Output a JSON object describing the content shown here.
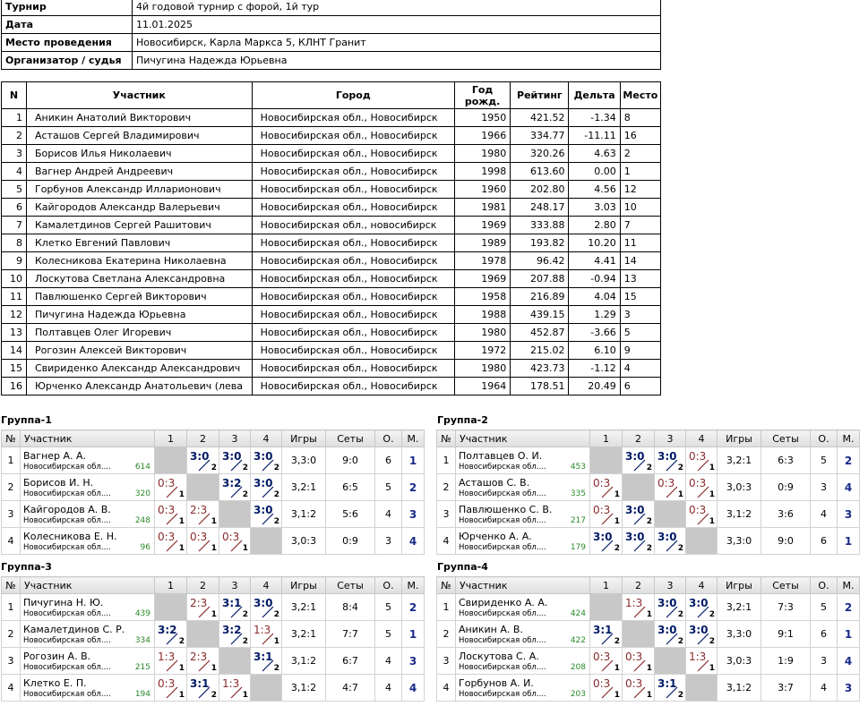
{
  "info": [
    {
      "key": "Турнир",
      "value": "4й годовой турнир с форой, 1й тур"
    },
    {
      "key": "Дата",
      "value": "11.01.2025"
    },
    {
      "key": "Место проведения",
      "value": "Новосибирск, Карла Маркса 5, КЛНТ Гранит"
    },
    {
      "key": "Организатор / судья",
      "value": "Пичугина Надежда Юрьевна"
    }
  ],
  "players_headers": [
    "N",
    "Участник",
    "Город",
    "Год рожд.",
    "Рейтинг",
    "Дельта",
    "Место"
  ],
  "players": [
    [
      "1",
      "Аникин Анатолий Викторович",
      "Новосибирская обл., Новосибирск",
      "1950",
      "421.52",
      "-1.34",
      "8"
    ],
    [
      "2",
      "Асташов Сергей Владимирович",
      "Новосибирская обл., Новосибирск",
      "1966",
      "334.77",
      "-11.11",
      "16"
    ],
    [
      "3",
      "Борисов Илья Николаевич",
      "Новосибирская обл., Новосибирск",
      "1980",
      "320.26",
      "4.63",
      "2"
    ],
    [
      "4",
      "Вагнер Андрей Андреевич",
      "Новосибирская обл., Новосибирск",
      "1998",
      "613.60",
      "0.00",
      "1"
    ],
    [
      "5",
      "Горбунов Александр Илларионович",
      "Новосибирская обл., Новосибирск",
      "1960",
      "202.80",
      "4.56",
      "12"
    ],
    [
      "6",
      "Кайгородов Александр Валерьевич",
      "Новосибирская обл., Новосибирск",
      "1981",
      "248.17",
      "3.03",
      "10"
    ],
    [
      "7",
      "Камалетдинов Сергей Рашитович",
      "Новосибирская обл., новосибирск",
      "1969",
      "333.88",
      "2.80",
      "7"
    ],
    [
      "8",
      "Клетко Евгений Павлович",
      "Новосибирская обл., Новосибирск",
      "1989",
      "193.82",
      "10.20",
      "11"
    ],
    [
      "9",
      "Колесникова Екатерина Николаевна",
      "Новосибирская обл., Новосибирск",
      "1978",
      "96.42",
      "4.41",
      "14"
    ],
    [
      "10",
      "Лоскутова Светлана Александровна",
      "Новосибирская обл., Новосибирск",
      "1969",
      "207.88",
      "-0.94",
      "13"
    ],
    [
      "11",
      "Павлюшенко Сергей Викторович",
      "Новосибирская обл., Новосибирск",
      "1958",
      "216.89",
      "4.04",
      "15"
    ],
    [
      "12",
      "Пичугина Надежда Юрьевна",
      "Новосибирская обл., Новосибирск",
      "1988",
      "439.15",
      "1.29",
      "3"
    ],
    [
      "13",
      "Полтавцев Олег Игоревич",
      "Новосибирская обл., Новосибирск",
      "1980",
      "452.87",
      "-3.66",
      "5"
    ],
    [
      "14",
      "Рогозин Алексей Викторович",
      "Новосибирская обл., Новосибирск",
      "1972",
      "215.02",
      "6.10",
      "9"
    ],
    [
      "15",
      "Свириденко Александр Александрович",
      "Новосибирская обл., Новосибирск",
      "1980",
      "423.73",
      "-1.12",
      "4"
    ],
    [
      "16",
      "Юрченко Александр Анатольевич (лева",
      "Новосибирская обл., Новосибирск",
      "1964",
      "178.51",
      "20.49",
      "6"
    ]
  ],
  "group_headers": [
    "№",
    "Участник",
    "1",
    "2",
    "3",
    "4",
    "Игры",
    "Сеты",
    "О.",
    "М."
  ],
  "groups": [
    {
      "title": "Группа-1",
      "rows": [
        {
          "n": "1",
          "name": "Вагнер А. А.",
          "city": "Новосибирская обл....",
          "rating": "614",
          "cells": [
            null,
            [
              "3:0",
              "2",
              "w"
            ],
            [
              "3:0",
              "2",
              "w"
            ],
            [
              "3:0",
              "2",
              "w"
            ]
          ],
          "games": "3,3:0",
          "sets": "9:0",
          "pts": "6",
          "place": "1"
        },
        {
          "n": "2",
          "name": "Борисов И. Н.",
          "city": "Новосибирская обл....",
          "rating": "320",
          "cells": [
            [
              "0:3",
              "1",
              "l"
            ],
            null,
            [
              "3:2",
              "2",
              "w"
            ],
            [
              "3:0",
              "2",
              "w"
            ]
          ],
          "games": "3,2:1",
          "sets": "6:5",
          "pts": "5",
          "place": "2"
        },
        {
          "n": "3",
          "name": "Кайгородов А. В.",
          "city": "Новосибирская обл....",
          "rating": "248",
          "cells": [
            [
              "0:3",
              "1",
              "l"
            ],
            [
              "2:3",
              "1",
              "l"
            ],
            null,
            [
              "3:0",
              "2",
              "w"
            ]
          ],
          "games": "3,1:2",
          "sets": "5:6",
          "pts": "4",
          "place": "3"
        },
        {
          "n": "4",
          "name": "Колесникова Е. Н.",
          "city": "Новосибирская обл....",
          "rating": "96",
          "cells": [
            [
              "0:3",
              "1",
              "l"
            ],
            [
              "0:3",
              "1",
              "l"
            ],
            [
              "0:3",
              "1",
              "l"
            ],
            null
          ],
          "games": "3,0:3",
          "sets": "0:9",
          "pts": "3",
          "place": "4"
        }
      ]
    },
    {
      "title": "Группа-2",
      "rows": [
        {
          "n": "1",
          "name": "Полтавцев О. И.",
          "city": "Новосибирская обл....",
          "rating": "453",
          "cells": [
            null,
            [
              "3:0",
              "2",
              "w"
            ],
            [
              "3:0",
              "2",
              "w"
            ],
            [
              "0:3",
              "1",
              "l"
            ]
          ],
          "games": "3,2:1",
          "sets": "6:3",
          "pts": "5",
          "place": "2"
        },
        {
          "n": "2",
          "name": "Асташов С. В.",
          "city": "Новосибирская обл....",
          "rating": "335",
          "cells": [
            [
              "0:3",
              "1",
              "l"
            ],
            null,
            [
              "0:3",
              "1",
              "l"
            ],
            [
              "0:3",
              "1",
              "l"
            ]
          ],
          "games": "3,0:3",
          "sets": "0:9",
          "pts": "3",
          "place": "4"
        },
        {
          "n": "3",
          "name": "Павлюшенко С. В.",
          "city": "Новосибирская обл....",
          "rating": "217",
          "cells": [
            [
              "0:3",
              "1",
              "l"
            ],
            [
              "3:0",
              "2",
              "w"
            ],
            null,
            [
              "0:3",
              "1",
              "l"
            ]
          ],
          "games": "3,1:2",
          "sets": "3:6",
          "pts": "4",
          "place": "3"
        },
        {
          "n": "4",
          "name": "Юрченко А. А.",
          "city": "Новосибирская обл....",
          "rating": "179",
          "cells": [
            [
              "3:0",
              "2",
              "w"
            ],
            [
              "3:0",
              "2",
              "w"
            ],
            [
              "3:0",
              "2",
              "w"
            ],
            null
          ],
          "games": "3,3:0",
          "sets": "9:0",
          "pts": "6",
          "place": "1"
        }
      ]
    },
    {
      "title": "Группа-3",
      "rows": [
        {
          "n": "1",
          "name": "Пичугина Н. Ю.",
          "city": "Новосибирская обл....",
          "rating": "439",
          "cells": [
            null,
            [
              "2:3",
              "1",
              "l"
            ],
            [
              "3:1",
              "2",
              "w"
            ],
            [
              "3:0",
              "2",
              "w"
            ]
          ],
          "games": "3,2:1",
          "sets": "8:4",
          "pts": "5",
          "place": "2"
        },
        {
          "n": "2",
          "name": "Камалетдинов С. Р.",
          "city": "Новосибирская обл....",
          "rating": "334",
          "cells": [
            [
              "3:2",
              "2",
              "w"
            ],
            null,
            [
              "3:2",
              "2",
              "w"
            ],
            [
              "1:3",
              "1",
              "l"
            ]
          ],
          "games": "3,2:1",
          "sets": "7:7",
          "pts": "5",
          "place": "1"
        },
        {
          "n": "3",
          "name": "Рогозин А. В.",
          "city": "Новосибирская обл....",
          "rating": "215",
          "cells": [
            [
              "1:3",
              "1",
              "l"
            ],
            [
              "2:3",
              "1",
              "l"
            ],
            null,
            [
              "3:1",
              "2",
              "w"
            ]
          ],
          "games": "3,1:2",
          "sets": "6:7",
          "pts": "4",
          "place": "3"
        },
        {
          "n": "4",
          "name": "Клетко Е. П.",
          "city": "Новосибирская обл....",
          "rating": "194",
          "cells": [
            [
              "0:3",
              "1",
              "l"
            ],
            [
              "3:1",
              "2",
              "w"
            ],
            [
              "1:3",
              "1",
              "l"
            ],
            null
          ],
          "games": "3,1:2",
          "sets": "4:7",
          "pts": "4",
          "place": "4"
        }
      ]
    },
    {
      "title": "Группа-4",
      "rows": [
        {
          "n": "1",
          "name": "Свириденко А. А.",
          "city": "Новосибирская обл....",
          "rating": "424",
          "cells": [
            null,
            [
              "1:3",
              "1",
              "l"
            ],
            [
              "3:0",
              "2",
              "w"
            ],
            [
              "3:0",
              "2",
              "w"
            ]
          ],
          "games": "3,2:1",
          "sets": "7:3",
          "pts": "5",
          "place": "2"
        },
        {
          "n": "2",
          "name": "Аникин А. В.",
          "city": "Новосибирская обл....",
          "rating": "422",
          "cells": [
            [
              "3:1",
              "2",
              "w"
            ],
            null,
            [
              "3:0",
              "2",
              "w"
            ],
            [
              "3:0",
              "2",
              "w"
            ]
          ],
          "games": "3,3:0",
          "sets": "9:1",
          "pts": "6",
          "place": "1"
        },
        {
          "n": "3",
          "name": "Лоскутова С. А.",
          "city": "Новосибирская обл....",
          "rating": "208",
          "cells": [
            [
              "0:3",
              "1",
              "l"
            ],
            [
              "0:3",
              "1",
              "l"
            ],
            null,
            [
              "1:3",
              "1",
              "l"
            ]
          ],
          "games": "3,0:3",
          "sets": "1:9",
          "pts": "3",
          "place": "4"
        },
        {
          "n": "4",
          "name": "Горбунов А. И.",
          "city": "Новосибирская обл....",
          "rating": "203",
          "cells": [
            [
              "0:3",
              "1",
              "l"
            ],
            [
              "0:3",
              "1",
              "l"
            ],
            [
              "3:1",
              "2",
              "w"
            ],
            null
          ],
          "games": "3,1:2",
          "sets": "3:7",
          "pts": "4",
          "place": "3"
        }
      ]
    }
  ]
}
